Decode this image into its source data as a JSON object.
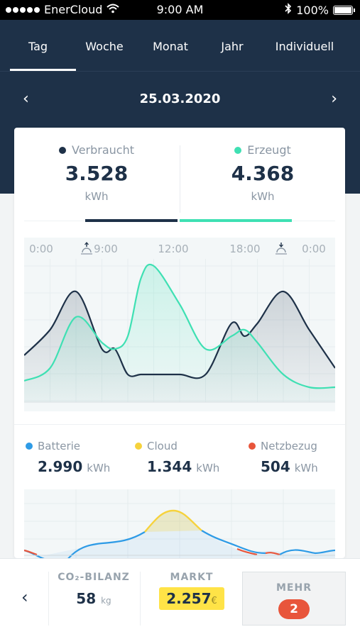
{
  "statusbar": {
    "carrier": "EnerCloud",
    "time": "9:00 AM",
    "battery": "100%"
  },
  "tabs": [
    {
      "label": "Tag",
      "active": true
    },
    {
      "label": "Woche"
    },
    {
      "label": "Monat"
    },
    {
      "label": "Jahr"
    },
    {
      "label": "Individuell"
    }
  ],
  "date_nav": {
    "date": "25.03.2020",
    "prev_icon": "chevron-left",
    "next_icon": "chevron-right"
  },
  "summary": {
    "consumed": {
      "label": "Verbraucht",
      "value": "3.528",
      "unit": "kWh",
      "color": "#1e3148"
    },
    "produced": {
      "label": "Erzeugt",
      "value": "4.368",
      "unit": "kWh",
      "color": "#3fe0b3"
    }
  },
  "time_labels": [
    "0:00",
    "9:00",
    "12:00",
    "18:00",
    "0:00"
  ],
  "breakdown": {
    "battery": {
      "label": "Batterie",
      "value": "2.990",
      "unit": "kWh",
      "color": "#2e9be6"
    },
    "cloud": {
      "label": "Cloud",
      "value": "1.344",
      "unit": "kWh",
      "color": "#f6d23c"
    },
    "grid": {
      "label": "Netzbezug",
      "value": "504",
      "unit": "kWh",
      "color": "#e8553b"
    }
  },
  "bottom": {
    "co2": {
      "title": "CO₂-BILANZ",
      "value": "58",
      "unit": "kg"
    },
    "market": {
      "title": "MARKT",
      "value": "2.257",
      "unit": "€"
    },
    "more": {
      "title": "MEHR",
      "badge": "2"
    }
  },
  "chart_data": {
    "type": "area",
    "x_ticks": [
      "0:00",
      "9:00",
      "12:00",
      "18:00",
      "0:00"
    ],
    "xlabel": "",
    "ylabel": "",
    "grid": true,
    "series": [
      {
        "name": "Verbraucht",
        "color": "#1e3148",
        "x": [
          0,
          2,
          4,
          6,
          7,
          8,
          9,
          10,
          12,
          14,
          16,
          17,
          18,
          20,
          22,
          24
        ],
        "y": [
          0.3,
          0.5,
          0.8,
          0.35,
          0.35,
          0.15,
          0.15,
          0.15,
          0.15,
          0.15,
          0.55,
          0.45,
          0.55,
          0.8,
          0.5,
          0.2
        ]
      },
      {
        "name": "Erzeugt",
        "color": "#3fe0b3",
        "x": [
          0,
          2,
          4,
          6,
          7,
          8,
          9,
          10,
          12,
          14,
          16,
          17,
          18,
          20,
          22,
          24
        ],
        "y": [
          0.1,
          0.2,
          0.6,
          0.4,
          0.35,
          0.45,
          0.9,
          1.0,
          0.7,
          0.35,
          0.45,
          0.5,
          0.4,
          0.15,
          0.05,
          0.05
        ]
      }
    ]
  }
}
